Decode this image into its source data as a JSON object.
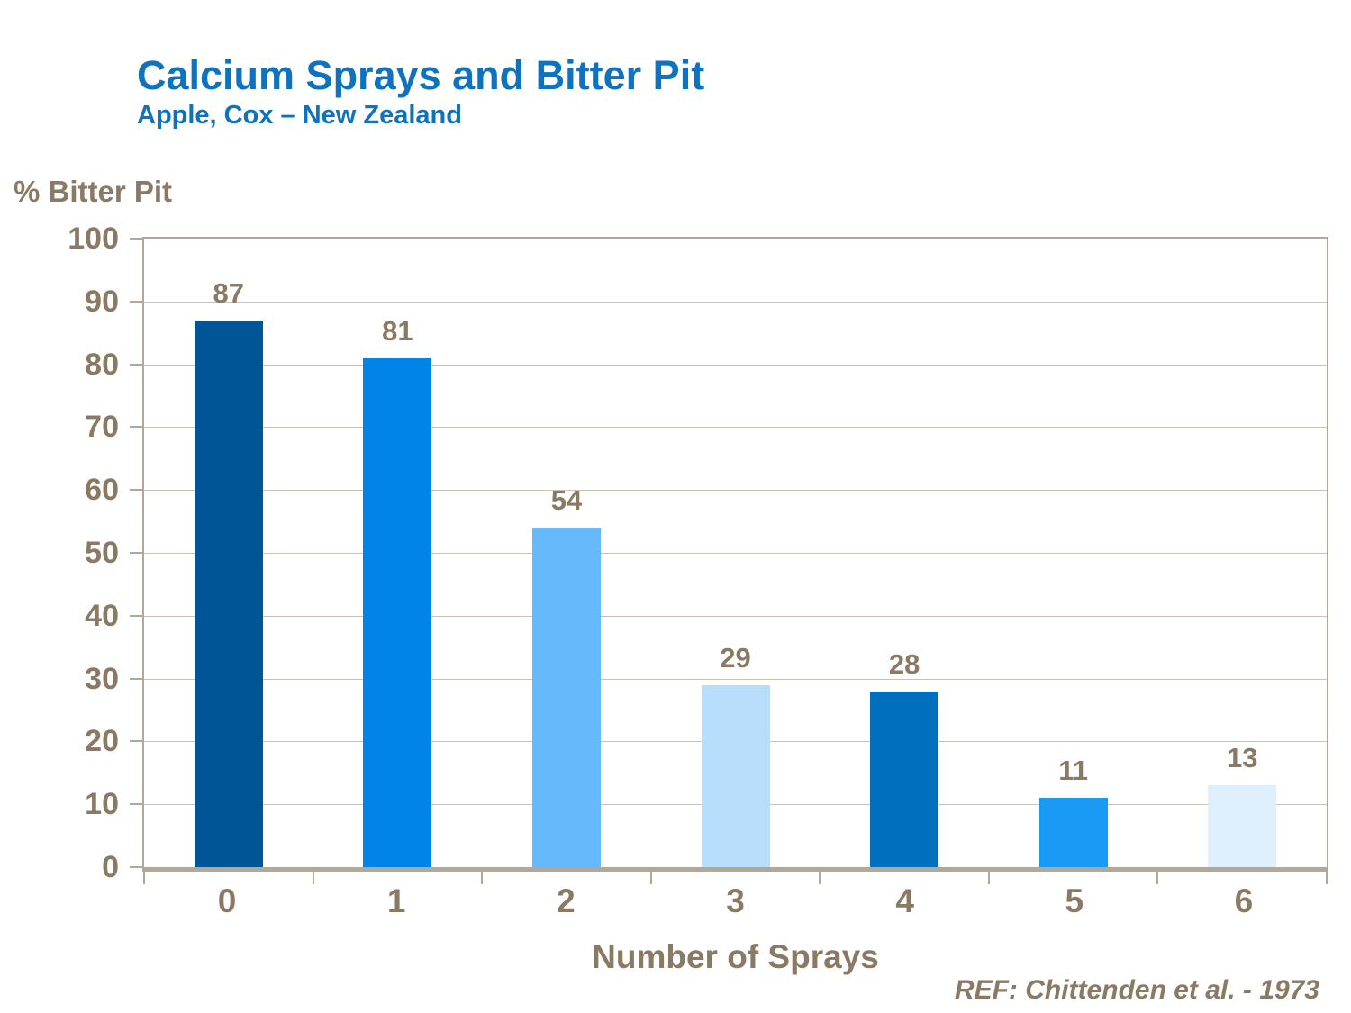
{
  "chart_data": {
    "type": "bar",
    "title": "Calcium Sprays and Bitter Pit",
    "subtitle": "Apple, Cox – New Zealand",
    "categories": [
      "0",
      "1",
      "2",
      "3",
      "4",
      "5",
      "6"
    ],
    "values": [
      87,
      81,
      54,
      29,
      28,
      11,
      13
    ],
    "bar_colors": [
      "#005596",
      "#0084E8",
      "#66BAFB",
      "#B9DEFC",
      "#0070BE",
      "#189AF5",
      "#DFEFFC"
    ],
    "xlabel": "Number of Sprays",
    "ylabel": "% Bitter Pit",
    "ylim": [
      0,
      100
    ],
    "ytick_step": 10,
    "grid": true,
    "legend": false,
    "value_labels": true
  },
  "footer": {
    "reference": "REF: Chittenden et al. - 1973"
  },
  "colors": {
    "title_blue": "#0E72BE",
    "label_brown": "#8A7A64",
    "axis_tan": "#B3A897",
    "gridline_tan": "#CCC2B4",
    "background": "#FFFFFF"
  }
}
